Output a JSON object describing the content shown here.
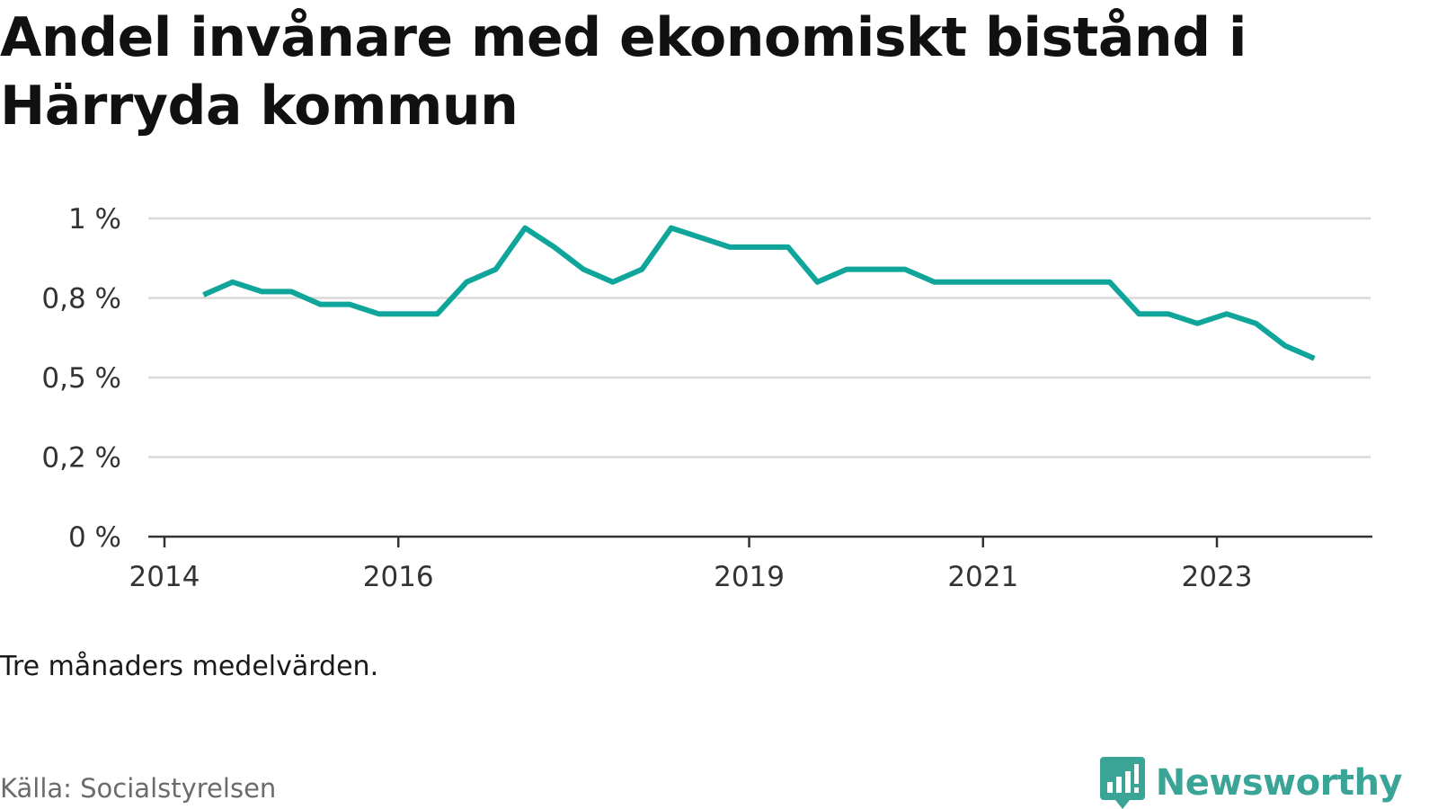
{
  "title": "Andel invånare med ekonomiskt bistånd i Härryda kommun",
  "note": "Tre månaders medelvärden.",
  "source": "Källa: Socialstyrelsen",
  "brand": "Newsworthy",
  "colors": {
    "line": "#0fa59a",
    "grid": "#d9d9d9",
    "axis": "#333333",
    "brand": "#3aa596"
  },
  "chart_data": {
    "type": "line",
    "title": "Andel invånare med ekonomiskt bistånd i Härryda kommun",
    "xlabel": "",
    "ylabel": "",
    "x_ticks": [
      "2014",
      "2016",
      "2019",
      "2021",
      "2023"
    ],
    "y_ticks": [
      "0 %",
      "0,2 %",
      "0,5 %",
      "0,8 %",
      "1 %"
    ],
    "ylim": [
      0,
      1.0
    ],
    "grid": true,
    "legend": "none",
    "series": [
      {
        "x": [
          "2014-05",
          "2014-08",
          "2014-11",
          "2015-02",
          "2015-05",
          "2015-08",
          "2015-11",
          "2016-02",
          "2016-05",
          "2016-08",
          "2016-11",
          "2017-02",
          "2017-05",
          "2017-08",
          "2017-11",
          "2018-02",
          "2018-05",
          "2018-08",
          "2018-11",
          "2019-02",
          "2019-05",
          "2019-08",
          "2019-11",
          "2020-02",
          "2020-05",
          "2020-08",
          "2020-11",
          "2021-02",
          "2021-05",
          "2021-08",
          "2021-11",
          "2022-02",
          "2022-05",
          "2022-08",
          "2022-11",
          "2023-02",
          "2023-05",
          "2023-08",
          "2023-11"
        ],
        "values": [
          0.76,
          0.8,
          0.77,
          0.77,
          0.73,
          0.73,
          0.7,
          0.7,
          0.7,
          0.8,
          0.84,
          0.97,
          0.91,
          0.84,
          0.8,
          0.84,
          0.97,
          0.94,
          0.91,
          0.91,
          0.91,
          0.8,
          0.84,
          0.84,
          0.84,
          0.8,
          0.8,
          0.8,
          0.8,
          0.8,
          0.8,
          0.8,
          0.7,
          0.7,
          0.67,
          0.7,
          0.67,
          0.6,
          0.56
        ]
      }
    ]
  }
}
